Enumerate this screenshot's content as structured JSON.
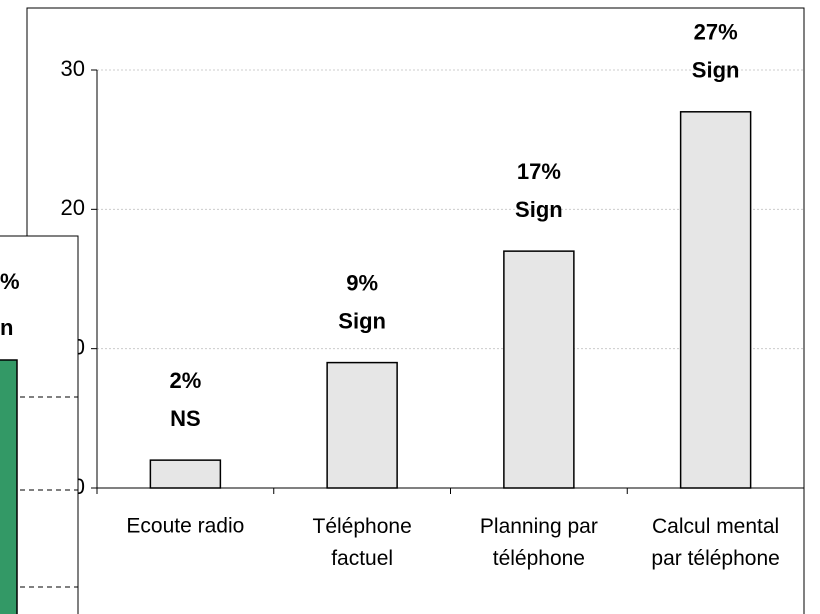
{
  "chart_data": {
    "type": "bar",
    "categories": [
      "Ecoute radio",
      "Téléphone\nfactuel",
      "Planning par\ntéléphone",
      "Calcul mental\npar téléphone"
    ],
    "values": [
      2,
      9,
      17,
      27
    ],
    "value_labels": [
      "2%",
      "9%",
      "17%",
      "27%"
    ],
    "annotations": [
      "NS",
      "Sign",
      "Sign",
      "Sign"
    ],
    "color": "#e6e6e6",
    "ylim": [
      0,
      30
    ],
    "yticks": [
      0,
      10,
      20,
      30
    ],
    "grid": true
  },
  "overlay": {
    "labels": [
      "%",
      "n"
    ],
    "color": "#339966"
  }
}
